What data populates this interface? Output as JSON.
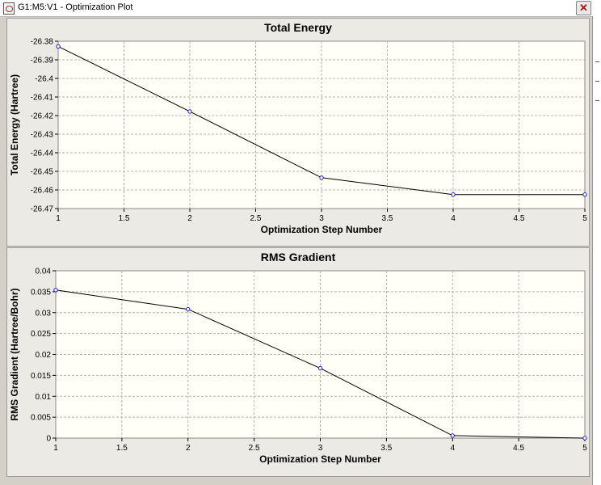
{
  "window": {
    "title": "G1:M5:V1 - Optimization Plot",
    "close_glyph": "✕"
  },
  "chart_data": [
    {
      "type": "line",
      "title": "Total Energy",
      "xlabel": "Optimization Step Number",
      "ylabel": "Total Energy (Hartree)",
      "x": [
        1,
        2,
        3,
        4,
        5
      ],
      "values": [
        -26.3828,
        -26.4178,
        -26.4534,
        -26.4625,
        -26.4625
      ],
      "xlim": [
        1,
        5
      ],
      "ylim": [
        -26.47,
        -26.38
      ],
      "xticks": [
        1,
        1.5,
        2,
        2.5,
        3,
        3.5,
        4,
        4.5,
        5
      ],
      "xtick_labels": [
        "1",
        "1.5",
        "2",
        "2.5",
        "3",
        "3.5",
        "4",
        "4.5",
        "5"
      ],
      "yticks": [
        -26.38,
        -26.39,
        -26.4,
        -26.41,
        -26.42,
        -26.43,
        -26.44,
        -26.45,
        -26.46,
        -26.47
      ],
      "ytick_labels": [
        "-26.38",
        "-26.39",
        "-26.4",
        "-26.41",
        "-26.42",
        "-26.43",
        "-26.44",
        "-26.45",
        "-26.46",
        "-26.47"
      ],
      "grid": true,
      "line_color": "#000000",
      "marker_color": "#2020c0"
    },
    {
      "type": "line",
      "title": "RMS Gradient",
      "xlabel": "Optimization Step Number",
      "ylabel": "RMS Gradient (Hartree/Bohr)",
      "x": [
        1,
        2,
        3,
        4,
        5
      ],
      "values": [
        0.0354,
        0.0308,
        0.0167,
        0.0006,
        0.0
      ],
      "xlim": [
        1,
        5
      ],
      "ylim": [
        0,
        0.04
      ],
      "xticks": [
        1,
        1.5,
        2,
        2.5,
        3,
        3.5,
        4,
        4.5,
        5
      ],
      "xtick_labels": [
        "1",
        "1.5",
        "2",
        "2.5",
        "3",
        "3.5",
        "4",
        "4.5",
        "5"
      ],
      "yticks": [
        0.04,
        0.035,
        0.03,
        0.025,
        0.02,
        0.015,
        0.01,
        0.005,
        0
      ],
      "ytick_labels": [
        "0.04",
        "0.035",
        "0.03",
        "0.025",
        "0.02",
        "0.015",
        "0.01",
        "0.005",
        "0"
      ],
      "grid": true,
      "line_color": "#000000",
      "marker_color": "#2020c0"
    }
  ]
}
